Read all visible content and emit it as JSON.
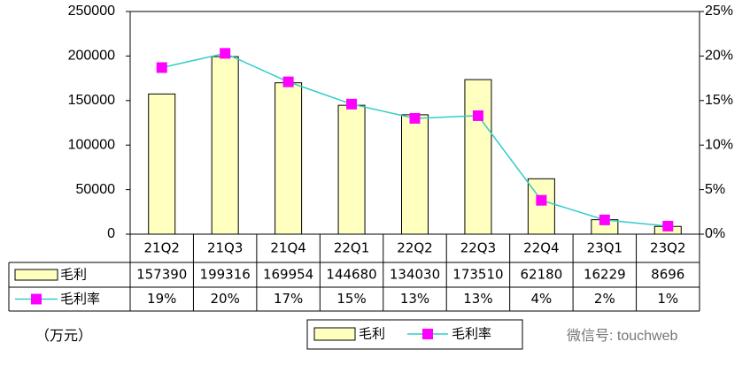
{
  "chart_data": {
    "type": "bar-line",
    "categories": [
      "21Q2",
      "21Q3",
      "21Q4",
      "22Q1",
      "22Q2",
      "22Q3",
      "22Q4",
      "23Q1",
      "23Q2"
    ],
    "series": [
      {
        "name": "毛利",
        "type": "bar",
        "color": "#FFFFC0",
        "values": [
          157390,
          199316,
          169954,
          144680,
          134030,
          173510,
          62180,
          16229,
          8696
        ]
      },
      {
        "name": "毛利率",
        "type": "line",
        "axis": "y2",
        "color": "#33CCCC",
        "marker_color": "#FF00FF",
        "values": [
          18.7,
          20.3,
          17.1,
          14.6,
          13.0,
          13.3,
          3.8,
          1.6,
          0.9
        ],
        "value_labels": [
          "19%",
          "20%",
          "17%",
          "15%",
          "13%",
          "13%",
          "4%",
          "2%",
          "1%"
        ]
      }
    ],
    "ylim": [
      0,
      250000
    ],
    "yticks": [
      0,
      50000,
      100000,
      150000,
      200000,
      250000
    ],
    "y2lim": [
      0,
      25
    ],
    "y2ticks": [
      {
        "value": 0,
        "label": "0%"
      },
      {
        "value": 5,
        "label": "5%"
      },
      {
        "value": 10,
        "label": "10%"
      },
      {
        "value": 15,
        "label": "15%"
      },
      {
        "value": 20,
        "label": "20%"
      },
      {
        "value": 25,
        "label": "25%"
      }
    ],
    "unit_label": "（万元）",
    "watermark": "微信号: touchweb",
    "grid": false
  }
}
